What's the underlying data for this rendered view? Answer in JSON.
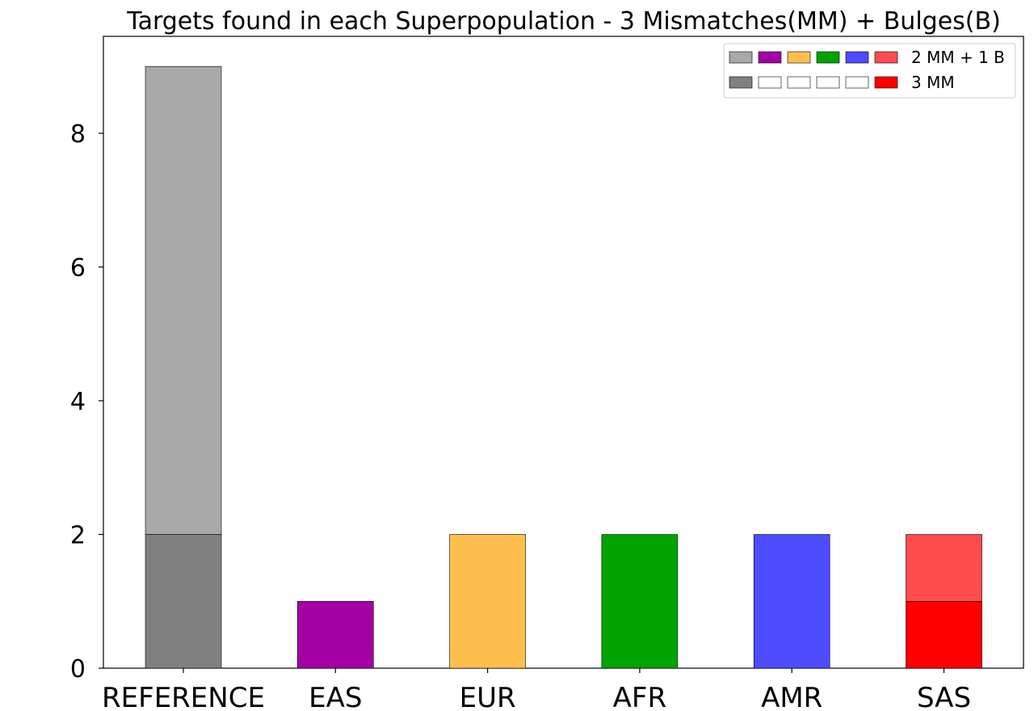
{
  "chart_data": {
    "type": "bar",
    "stacked": true,
    "title": "Targets found in each Superpopulation - 3 Mismatches(MM) + Bulges(B)",
    "xlabel": "",
    "ylabel": "",
    "categories": [
      "REFERENCE",
      "EAS",
      "EUR",
      "AFR",
      "AMR",
      "SAS"
    ],
    "ylim": [
      0,
      9.45
    ],
    "yticks": [
      0,
      2,
      4,
      6,
      8
    ],
    "grid": false,
    "legend_position": "top-right",
    "series": [
      {
        "name": "3 MM",
        "values": [
          2,
          0,
          0,
          0,
          0,
          1
        ],
        "colors": [
          "#808080",
          "#a500a5",
          "#ffbf4f",
          "#00a300",
          "#4d4dff",
          "#ff0000"
        ]
      },
      {
        "name": "2 MM + 1 B",
        "values": [
          7,
          1,
          2,
          2,
          2,
          1
        ],
        "colors": [
          "#a9a9a9",
          "#a500a5",
          "#ffbf4f",
          "#00a300",
          "#4d4dff",
          "#ff4d4d"
        ]
      }
    ],
    "legend": [
      {
        "label": "2 MM + 1 B",
        "swatches": [
          "#a9a9a9",
          "#a500a5",
          "#ffbf4f",
          "#00a300",
          "#4d4dff",
          "#ff4d4d"
        ]
      },
      {
        "label": "3 MM",
        "swatches": [
          "#808080",
          "#ffffff",
          "#ffffff",
          "#ffffff",
          "#ffffff",
          "#ff0000"
        ]
      }
    ]
  }
}
